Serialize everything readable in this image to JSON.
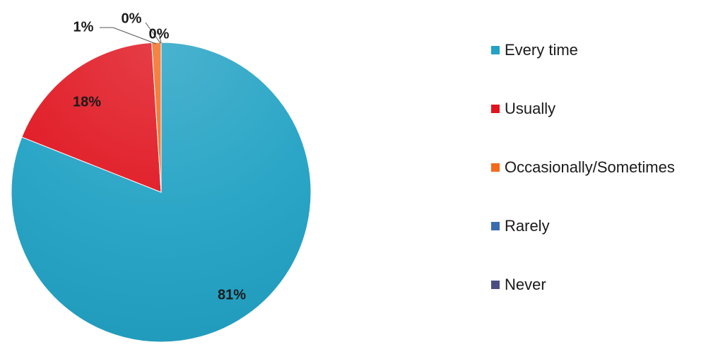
{
  "chart_data": {
    "type": "pie",
    "title": "",
    "slices": [
      {
        "label": "Every time",
        "value": 81,
        "display": "81%",
        "color": "#22a2c4"
      },
      {
        "label": "Usually",
        "value": 18,
        "display": "18%",
        "color": "#e0141f"
      },
      {
        "label": "Occasionally/Sometimes",
        "value": 1,
        "display": "1%",
        "color": "#f36a1d"
      },
      {
        "label": "Rarely",
        "value": 0,
        "display": "0%",
        "color": "#3a6cb0"
      },
      {
        "label": "Never",
        "value": 0,
        "display": "0%",
        "color": "#4a4e80"
      }
    ],
    "legend_position": "right"
  }
}
